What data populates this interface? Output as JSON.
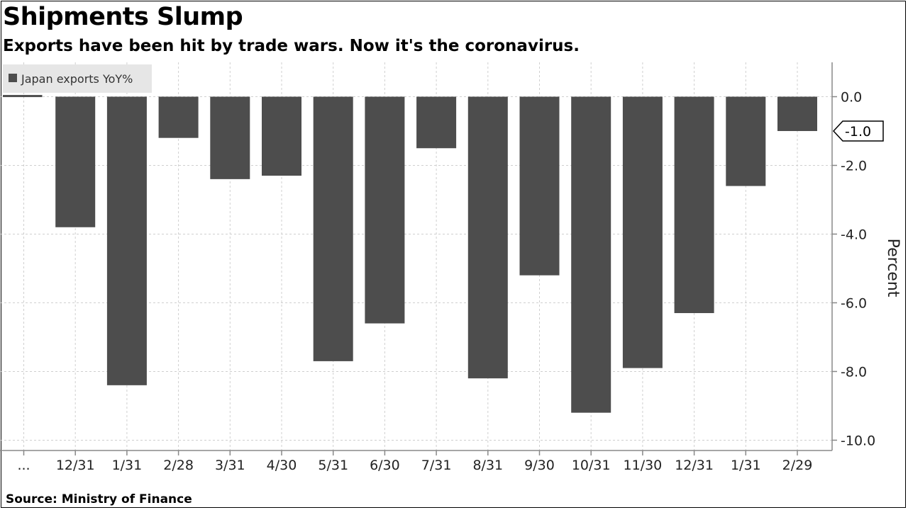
{
  "header": {
    "title": "Shipments Slump",
    "subtitle": "Exports have been hit by trade wars. Now it's the coronavirus."
  },
  "footer": {
    "source": "Source: Ministry of Finance"
  },
  "colors": {
    "bar": "#4d4d4d",
    "grid": "#cfcfcf",
    "axis": "#888888"
  },
  "chart_data": {
    "type": "bar",
    "title": "Shipments Slump",
    "subtitle": "Exports have been hit by trade wars. Now it's the coronavirus.",
    "ylabel": "Percent",
    "ylim": [
      -10.3,
      1.0
    ],
    "yticks": [
      0.0,
      -2.0,
      -4.0,
      -6.0,
      -8.0,
      -10.0
    ],
    "ytick_labels": [
      "0.0",
      "-2.0",
      "-4.0",
      "-6.0",
      "-8.0",
      "-10.0"
    ],
    "y_axis_side": "right",
    "grid": true,
    "legend_position": "top-left",
    "categories": [
      "...",
      "12/31",
      "1/31",
      "2/28",
      "3/31",
      "4/30",
      "5/31",
      "6/30",
      "7/31",
      "8/31",
      "9/30",
      "10/31",
      "11/30",
      "12/31",
      "1/31",
      "2/29"
    ],
    "series": [
      {
        "name": "Japan exports YoY%",
        "values": [
          0.05,
          -3.8,
          -8.4,
          -1.2,
          -2.4,
          -2.3,
          -7.7,
          -6.6,
          -1.5,
          -8.2,
          -5.2,
          -9.2,
          -7.9,
          -6.3,
          -2.6,
          -1.0
        ]
      }
    ],
    "last_value_label": "-1.0"
  }
}
